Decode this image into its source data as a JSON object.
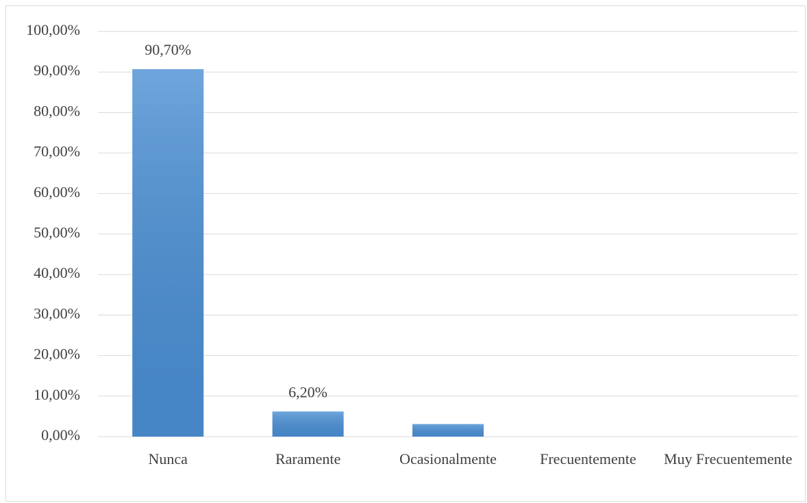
{
  "chart_data": {
    "type": "bar",
    "categories": [
      "Nunca",
      "Raramente",
      "Ocasionalmente",
      "Frecuentemente",
      "Muy Frecuentemente"
    ],
    "values": [
      90.7,
      6.2,
      3.1,
      0,
      0
    ],
    "value_labels": [
      "90,70%",
      "6,20%",
      null,
      null,
      null
    ],
    "color": "#4a8fd4",
    "ylim": [
      0,
      100
    ],
    "yticks": [
      {
        "value": 0,
        "label": "0,00%"
      },
      {
        "value": 10,
        "label": "10,00%"
      },
      {
        "value": 20,
        "label": "20,00%"
      },
      {
        "value": 30,
        "label": "30,00%"
      },
      {
        "value": 40,
        "label": "40,00%"
      },
      {
        "value": 50,
        "label": "50,00%"
      },
      {
        "value": 60,
        "label": "60,00%"
      },
      {
        "value": 70,
        "label": "70,00%"
      },
      {
        "value": 80,
        "label": "80,00%"
      },
      {
        "value": 90,
        "label": "90,00%"
      },
      {
        "value": 100,
        "label": "100,00%"
      }
    ],
    "grid": true
  }
}
